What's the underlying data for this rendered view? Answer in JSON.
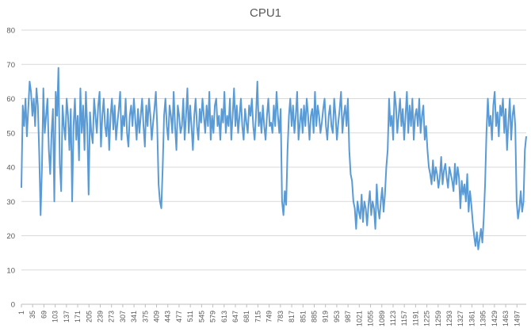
{
  "chart_data": {
    "type": "line",
    "title": "CPU1",
    "xlabel": "",
    "ylabel": "",
    "ylim": [
      0,
      80
    ],
    "yticks": [
      0,
      10,
      20,
      30,
      40,
      50,
      60,
      70,
      80
    ],
    "xlim": [
      1,
      1525
    ],
    "xtick_labels": [
      "1",
      "35",
      "69",
      "103",
      "137",
      "171",
      "205",
      "239",
      "273",
      "307",
      "341",
      "375",
      "409",
      "443",
      "477",
      "511",
      "545",
      "579",
      "613",
      "647",
      "681",
      "715",
      "749",
      "783",
      "817",
      "851",
      "885",
      "919",
      "953",
      "987",
      "1021",
      "1055",
      "1089",
      "1123",
      "1157",
      "1191",
      "1225",
      "1259",
      "1293",
      "1327",
      "1361",
      "1395",
      "1429",
      "1463",
      "1497"
    ],
    "grid": true,
    "line_color": "#5B9BD5",
    "series": [
      {
        "values": [
          34,
          58,
          52,
          60,
          49,
          57,
          65,
          62,
          55,
          60,
          52,
          63,
          58,
          44,
          26,
          40,
          63,
          50,
          55,
          60,
          45,
          38,
          50,
          57,
          30,
          62,
          55,
          69,
          41,
          33,
          58,
          52,
          48,
          60,
          55,
          45,
          57,
          30,
          52,
          60,
          48,
          55,
          42,
          63,
          50,
          58,
          45,
          62,
          52,
          32,
          56,
          50,
          47,
          60,
          55,
          50,
          58,
          62,
          46,
          55,
          60,
          52,
          49,
          57,
          45,
          55,
          60,
          51,
          58,
          48,
          53,
          57,
          62,
          48,
          55,
          52,
          60,
          50,
          46,
          55,
          58,
          52,
          60,
          54,
          48,
          57,
          50,
          55,
          60,
          52,
          46,
          58,
          52,
          60,
          55,
          48,
          53,
          57,
          62,
          52,
          35,
          30,
          28,
          40,
          55,
          60,
          52,
          48,
          58,
          55,
          50,
          62,
          52,
          45,
          58,
          55,
          50,
          52,
          60,
          48,
          55,
          63,
          50,
          58,
          52,
          45,
          55,
          60,
          52,
          48,
          57,
          53,
          60,
          55,
          50,
          58,
          52,
          62,
          48,
          55,
          50,
          58,
          60,
          52,
          55,
          48,
          57,
          53,
          62,
          50,
          55,
          52,
          60,
          48,
          55,
          63,
          52,
          58,
          50,
          55,
          60,
          52,
          48,
          57,
          53,
          50,
          58,
          55,
          60,
          52,
          48,
          55,
          65,
          52,
          56,
          50,
          58,
          52,
          48,
          55,
          60,
          52,
          53,
          50,
          58,
          52,
          62,
          55,
          50,
          57,
          30,
          26,
          33,
          29,
          45,
          55,
          60,
          52,
          58,
          50,
          55,
          62,
          48,
          53,
          57,
          50,
          58,
          52,
          60,
          55,
          48,
          55,
          57,
          50,
          62,
          52,
          58,
          55,
          50,
          53,
          57,
          60,
          52,
          48,
          55,
          58,
          52,
          50,
          60,
          55,
          48,
          53,
          57,
          62,
          50,
          55,
          58,
          52,
          60,
          45,
          38,
          36,
          30,
          28,
          22,
          30,
          27,
          25,
          32,
          24,
          30,
          28,
          23,
          29,
          33,
          26,
          30,
          28,
          22,
          35,
          28,
          25,
          30,
          34,
          27,
          32,
          40,
          45,
          60,
          52,
          55,
          48,
          62,
          58,
          50,
          55,
          60,
          52,
          57,
          48,
          55,
          62,
          50,
          58,
          52,
          60,
          48,
          55,
          57,
          52,
          60,
          50,
          55,
          58,
          48,
          52,
          45,
          40,
          38,
          35,
          42,
          36,
          40,
          38,
          34,
          37,
          43,
          35,
          39,
          41,
          37,
          34,
          40,
          38,
          36,
          33,
          41,
          35,
          40,
          37,
          28,
          36,
          32,
          35,
          30,
          38,
          27,
          33,
          29,
          24,
          20,
          17,
          21,
          16,
          19,
          22,
          18,
          25,
          35,
          50,
          60,
          52,
          55,
          48,
          58,
          62,
          52,
          56,
          49,
          58,
          55,
          60,
          50,
          57,
          45,
          53,
          60,
          48,
          55,
          58,
          52,
          30,
          25,
          28,
          33,
          27,
          30,
          45,
          49
        ]
      }
    ]
  }
}
